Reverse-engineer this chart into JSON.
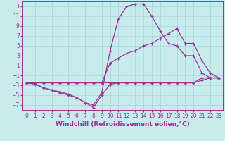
{
  "xlabel": "Windchill (Refroidissement éolien,°C)",
  "bg_color": "#c8ecec",
  "grid_color": "#aad8d8",
  "line_color": "#993399",
  "xlim": [
    -0.5,
    23.5
  ],
  "ylim": [
    -8,
    14
  ],
  "xticks": [
    0,
    1,
    2,
    3,
    4,
    5,
    6,
    7,
    8,
    9,
    10,
    11,
    12,
    13,
    14,
    15,
    16,
    17,
    18,
    19,
    20,
    21,
    22,
    23
  ],
  "yticks": [
    -7,
    -5,
    -3,
    -1,
    1,
    3,
    5,
    7,
    9,
    11,
    13
  ],
  "series": [
    {
      "x": [
        0,
        1,
        2,
        3,
        4,
        5,
        6,
        7,
        8,
        9,
        10,
        11,
        12,
        13,
        14,
        15,
        16,
        17,
        18,
        19,
        20,
        21,
        22,
        23
      ],
      "y": [
        -2.5,
        -2.5,
        -2.5,
        -2.5,
        -2.5,
        -2.5,
        -2.5,
        -2.5,
        -2.5,
        -2.5,
        -2.5,
        -2.5,
        -2.5,
        -2.5,
        -2.5,
        -2.5,
        -2.5,
        -2.5,
        -2.5,
        -2.5,
        -2.5,
        -2.0,
        -1.5,
        -1.5
      ]
    },
    {
      "x": [
        0,
        1,
        2,
        3,
        4,
        5,
        6,
        7,
        8,
        9,
        10,
        11,
        12,
        13,
        14,
        15,
        16,
        17,
        18,
        19,
        20,
        21,
        22,
        23
      ],
      "y": [
        -2.5,
        -2.7,
        -3.5,
        -4.0,
        -4.3,
        -4.8,
        -5.5,
        -6.5,
        -7.5,
        -5.0,
        -2.8,
        -2.5,
        -2.5,
        -2.5,
        -2.5,
        -2.5,
        -2.5,
        -2.5,
        -2.5,
        -2.5,
        -2.5,
        -1.5,
        -1.5,
        -1.5
      ]
    },
    {
      "x": [
        0,
        1,
        2,
        3,
        4,
        5,
        6,
        7,
        8,
        9,
        10,
        11,
        12,
        13,
        14,
        15,
        16,
        17,
        18,
        19,
        20,
        21,
        22,
        23
      ],
      "y": [
        -2.5,
        -2.8,
        -3.5,
        -4.0,
        -4.5,
        -5.0,
        -5.5,
        -6.5,
        -7.0,
        -4.5,
        4.0,
        10.5,
        13.0,
        13.5,
        13.5,
        11.0,
        8.0,
        5.5,
        5.0,
        3.0,
        3.0,
        -0.5,
        -1.5,
        -1.5
      ]
    },
    {
      "x": [
        0,
        1,
        2,
        3,
        4,
        5,
        6,
        7,
        8,
        9,
        10,
        11,
        12,
        13,
        14,
        15,
        16,
        17,
        18,
        19,
        20,
        21,
        22,
        23
      ],
      "y": [
        -2.5,
        -2.5,
        -2.5,
        -2.5,
        -2.5,
        -2.5,
        -2.5,
        -2.5,
        -2.5,
        -2.5,
        1.5,
        2.5,
        3.5,
        4.0,
        5.0,
        5.5,
        6.5,
        7.5,
        8.5,
        5.5,
        5.5,
        2.0,
        -0.5,
        -1.5
      ]
    }
  ],
  "tick_fontsize": 5.5,
  "xlabel_fontsize": 6.5,
  "xlabel_fontweight": "bold",
  "marker": "+",
  "markersize": 3.0,
  "linewidth": 0.9
}
